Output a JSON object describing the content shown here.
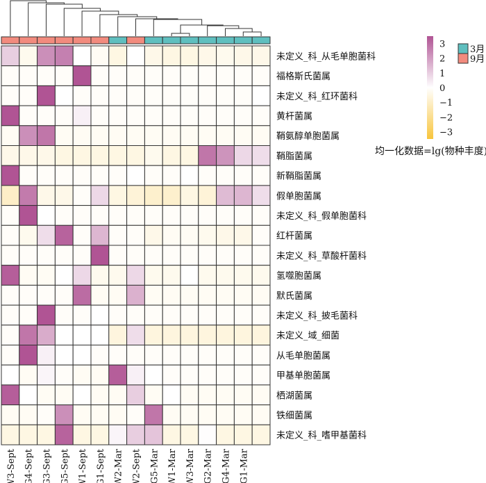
{
  "chart_data": {
    "type": "heatmap",
    "columns": [
      "W3-Sept",
      "G4-Sept",
      "G3-Sept",
      "G5-Sept",
      "W1-Sept",
      "G1-Sept",
      "W2-Mar",
      "W2-Sept",
      "G5-Mar",
      "W1-Mar",
      "W3-Mar",
      "G2-Mar",
      "G4-Mar",
      "G1-Mar",
      ""
    ],
    "column_groups": [
      "9月",
      "9月",
      "9月",
      "9月",
      "9月",
      "9月",
      "3月",
      "9月",
      "3月",
      "3月",
      "3月",
      "3月",
      "3月",
      "3月",
      "3月"
    ],
    "rows": [
      "未定义_科_从毛单胞菌科",
      "福格斯氏菌属",
      "未定义_科_红环菌科",
      "黄杆菌属",
      "鞘氨醇单胞菌属",
      "鞘脂菌属",
      "新鞘脂菌属",
      "假单胞菌属",
      "未定义_科_假单胞菌科",
      "红杆菌属",
      "未定义_科_草酸杆菌科",
      "氢噬胞菌属",
      "默氏菌属",
      "未定义_科_披毛菌科",
      "未定义_域_细菌",
      "从毛单胞菌属",
      "甲基单胞菌属",
      "栖湖菌属",
      "铁细菌属",
      "未定义_科_嗜甲基菌科"
    ],
    "values": [
      [
        1.0,
        -0.3,
        2.3,
        2.6,
        0,
        -0.2,
        -0.5,
        0,
        -0.4,
        -0.5,
        -0.5,
        -0.4,
        -0.3,
        -0.4,
        -0.4
      ],
      [
        -0.1,
        -0.1,
        -0.1,
        -0.1,
        3.5,
        -0.1,
        -0.1,
        -0.1,
        -0.1,
        -0.1,
        -0.1,
        -0.1,
        -0.1,
        -0.1,
        -0.1
      ],
      [
        -0.1,
        -0.1,
        3.5,
        0,
        -0.1,
        -0.1,
        -0.1,
        -0.1,
        -0.1,
        -0.1,
        -0.1,
        -0.1,
        -0.1,
        -0.1,
        0
      ],
      [
        3.5,
        -0.1,
        -0.1,
        -0.1,
        0.3,
        -0.1,
        -0.1,
        -0.1,
        -0.1,
        -0.1,
        -0.1,
        -0.1,
        -0.1,
        -0.1,
        -0.1
      ],
      [
        -0.2,
        2.3,
        2.8,
        -0.2,
        -0.2,
        -0.2,
        -0.2,
        -0.2,
        -0.2,
        -0.2,
        -0.2,
        -0.2,
        -0.2,
        -0.2,
        -0.2
      ],
      [
        -0.4,
        -0.4,
        -0.4,
        -0.5,
        -0.5,
        -0.5,
        -0.5,
        -0.5,
        -0.3,
        -0.5,
        -0.5,
        2.8,
        2.2,
        0.8,
        0.7
      ],
      [
        3.5,
        -0.1,
        -0.1,
        -0.1,
        -0.1,
        -0.1,
        -0.1,
        0,
        -0.1,
        -0.1,
        0,
        -0.1,
        -0.1,
        -0.1,
        -0.1
      ],
      [
        -1.0,
        2.7,
        -0.4,
        -0.4,
        -0.1,
        0.8,
        -0.5,
        -0.7,
        -0.9,
        -0.9,
        -0.5,
        -0.7,
        1.4,
        1.5,
        0.7
      ],
      [
        -0.1,
        3.5,
        0,
        -0.1,
        -0.1,
        -0.1,
        -0.1,
        -0.1,
        -0.1,
        -0.1,
        -0.1,
        -0.1,
        -0.1,
        -0.1,
        -0.1
      ],
      [
        -0.1,
        -0.3,
        0.7,
        3.2,
        -0.1,
        1.5,
        -0.1,
        -0.1,
        -0.4,
        -0.2,
        -0.2,
        -0.3,
        -0.4,
        -0.4,
        -0.1
      ],
      [
        -0.1,
        -0.1,
        -0.1,
        -0.1,
        -0.1,
        3.5,
        -0.1,
        -0.1,
        -0.1,
        -0.1,
        -0.1,
        -0.1,
        -0.1,
        -0.1,
        -0.1
      ],
      [
        3.3,
        -0.2,
        -0.2,
        0,
        0.8,
        -0.3,
        -0.3,
        0.8,
        -0.3,
        -0.3,
        0,
        -0.3,
        -0.3,
        -0.3,
        -0.3
      ],
      [
        -0.1,
        -0.1,
        -0.1,
        -0.1,
        3.0,
        -0.2,
        -0.2,
        1.6,
        -0.2,
        -0.2,
        -0.2,
        -0.2,
        -0.2,
        -0.2,
        -0.2
      ],
      [
        -0.1,
        -0.1,
        3.5,
        -0.1,
        -0.1,
        0,
        -0.1,
        -0.1,
        -0.1,
        -0.1,
        -0.1,
        -0.1,
        -0.1,
        -0.1,
        -0.1
      ],
      [
        -0.1,
        2.8,
        1.7,
        0,
        0,
        0,
        -0.6,
        0.7,
        -0.6,
        -0.6,
        -0.6,
        -0.6,
        -0.6,
        -0.6,
        -0.6
      ],
      [
        -0.1,
        3.5,
        0.3,
        0,
        0,
        -0.1,
        -0.1,
        -0.1,
        -0.1,
        -0.1,
        -0.1,
        -0.1,
        -0.1,
        -0.1,
        -0.1
      ],
      [
        0,
        -0.2,
        0.2,
        -0.1,
        -0.2,
        -0.2,
        3.3,
        0.3,
        0,
        -0.1,
        -0.1,
        -0.1,
        -0.1,
        -0.1,
        -0.1
      ],
      [
        3.3,
        0,
        -0.2,
        -0.2,
        0,
        -0.2,
        -0.2,
        1.0,
        -0.2,
        0,
        -0.2,
        -0.2,
        -0.2,
        -0.2,
        -0.2
      ],
      [
        -0.2,
        -0.2,
        -0.1,
        2.3,
        -0.2,
        -0.2,
        -0.2,
        -0.1,
        2.8,
        -0.2,
        -0.2,
        -0.2,
        -0.2,
        -0.2,
        -0.2
      ],
      [
        -0.5,
        -0.5,
        -0.5,
        3.2,
        -0.5,
        -0.5,
        0.2,
        1.0,
        1.2,
        -0.5,
        -0.5,
        0.05,
        -0.5,
        -0.5,
        -0.5
      ]
    ],
    "colorbar": {
      "ticks": [
        "3",
        "2",
        "1",
        "0",
        "−1",
        "−2",
        "−3"
      ],
      "range": [
        -3.5,
        3.5
      ],
      "title": "均一化数据=lg(物种丰度)",
      "low_color": "#f8c53c",
      "mid_color": "#ffffff",
      "high_color": "#b05494"
    },
    "group_legend": [
      {
        "label": "3月",
        "color": "#5fbfbf"
      },
      {
        "label": "9月",
        "color": "#f28b7e"
      }
    ],
    "column_dendrogram": true
  }
}
